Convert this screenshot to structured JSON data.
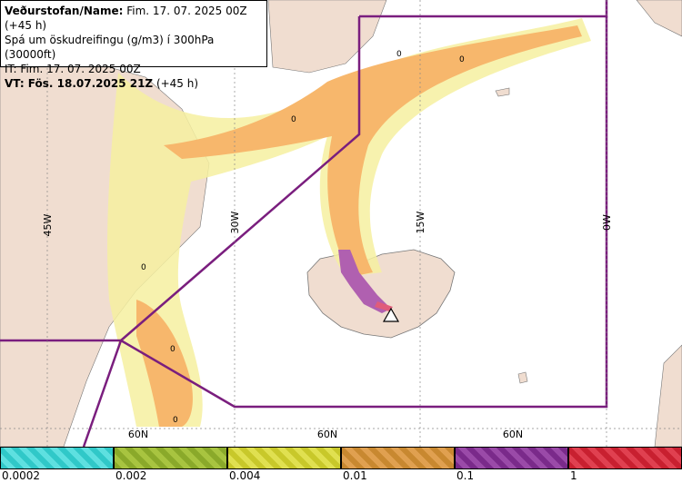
{
  "header": {
    "line1_bold": "Veðurstofan/Name:",
    "line1_rest": " Fim. 17. 07. 2025 00Z (+45 h)",
    "line2": "Spá um öskudreifingu (g/m3) í 300hPa (30000ft)",
    "line3": "IT: Fim. 17. 07. 2025 00Z",
    "line4_bold": "VT: Fös. 18.07.2025 21Z",
    "line4_rest": " (+45 h)"
  },
  "grid_labels": {
    "lon": [
      "45W",
      "30W",
      "15W",
      "0W"
    ],
    "lat": [
      "60N",
      "60N",
      "60N"
    ]
  },
  "contour_labels": [
    "0",
    "0",
    "0",
    "0",
    "0",
    "0"
  ],
  "legend": {
    "labels": [
      "0.0002",
      "0.002",
      "0.004",
      "0.01",
      "0.1",
      "1"
    ],
    "colors": [
      "#30c8c8",
      "#8aa92a",
      "#c8c82a",
      "#c88830",
      "#7a2a8a",
      "#c82030"
    ]
  },
  "colors": {
    "land": "#f0ddd0",
    "boundary": "#7a1e7e",
    "ash_light": "#f6f0a0",
    "ash_mid": "#f7b76c",
    "ash_strong": "#b060b0"
  },
  "icons": [
    "volcano-marker-icon"
  ]
}
